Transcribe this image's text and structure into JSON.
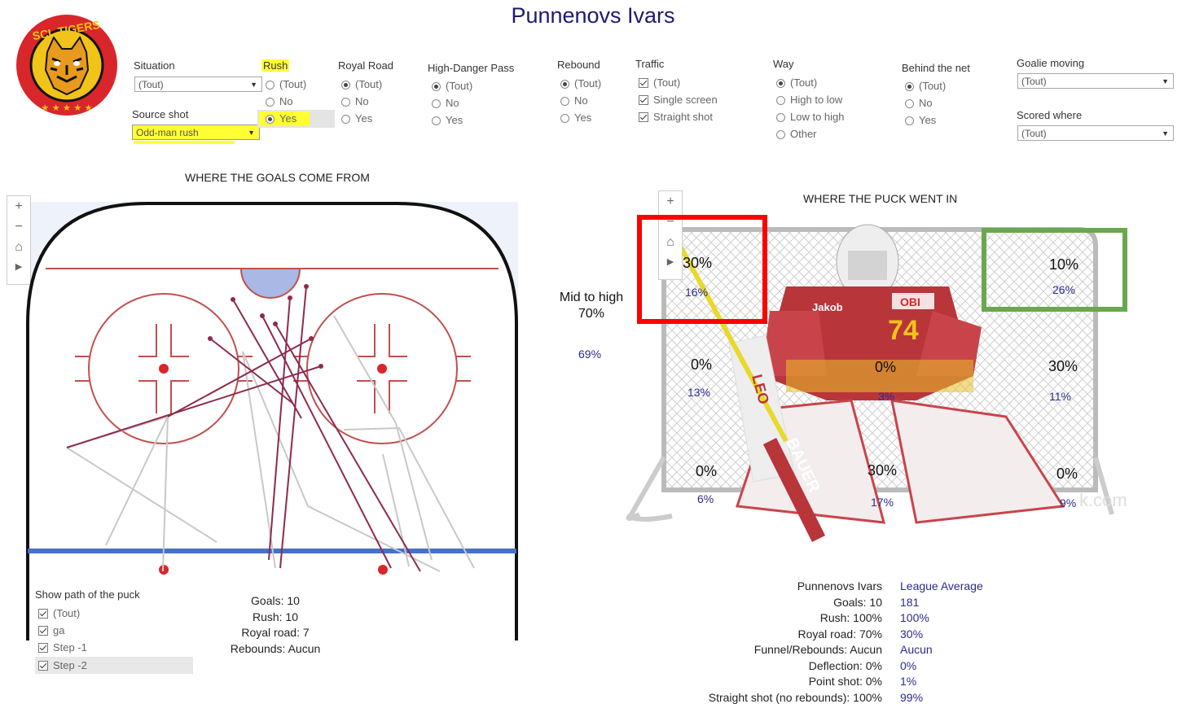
{
  "title": "Punnenovs Ivars",
  "filters": {
    "situation": {
      "label": "Situation",
      "value": "(Tout)"
    },
    "source_shot": {
      "label": "Source shot",
      "value": "Odd-man rush"
    },
    "rush": {
      "label": "Rush",
      "options": [
        "(Tout)",
        "No",
        "Yes"
      ],
      "selected": 2
    },
    "royal_road": {
      "label": "Royal Road",
      "options": [
        "(Tout)",
        "No",
        "Yes"
      ],
      "selected": 0
    },
    "high_danger": {
      "label": "High-Danger Pass",
      "options": [
        "(Tout)",
        "No",
        "Yes"
      ],
      "selected": 0
    },
    "rebound": {
      "label": "Rebound",
      "options": [
        "(Tout)",
        "No",
        "Yes"
      ],
      "selected": 0
    },
    "traffic": {
      "label": "Traffic",
      "options": [
        "(Tout)",
        "Single screen",
        "Straight shot"
      ]
    },
    "way": {
      "label": "Way",
      "options": [
        "(Tout)",
        "High to low",
        "Low to high",
        "Other"
      ],
      "selected": 0
    },
    "behind_net": {
      "label": "Behind the net",
      "options": [
        "(Tout)",
        "No",
        "Yes"
      ],
      "selected": 0
    },
    "goalie_moving": {
      "label": "Goalie moving",
      "value": "(Tout)"
    },
    "scored_where": {
      "label": "Scored where",
      "value": "(Tout)"
    }
  },
  "rink": {
    "title": "WHERE THE GOALS COME FROM",
    "show_path_label": "Show path of the puck",
    "paths": [
      "(Tout)",
      "ga",
      "Step -1",
      "Step -2"
    ],
    "stats": [
      "Goals: 10",
      "Rush: 10",
      "Royal road: 7",
      "Rebounds: Aucun"
    ]
  },
  "net": {
    "title": "WHERE THE PUCK WENT IN",
    "mid_to_high_label": "Mid to high",
    "mid_to_high_value": "70%",
    "mid_to_high_league": "69%",
    "zones": [
      {
        "pct": "30%",
        "league": "16%"
      },
      {
        "pct": "10%",
        "league": "26%"
      },
      {
        "pct": "0%",
        "league": "13%"
      },
      {
        "pct": "0%",
        "league": "3%"
      },
      {
        "pct": "30%",
        "league": "11%"
      },
      {
        "pct": "0%",
        "league": "6%"
      },
      {
        "pct": "30%",
        "league": "17%"
      },
      {
        "pct": "0%",
        "league": "9%"
      }
    ],
    "goalie_number": "74",
    "goalie_name": "Jakob",
    "sponsor": "OBI",
    "stick_brand": "BAUER",
    "pad_brand": "LEO",
    "watermark": "k.com",
    "colors": {
      "red_box": "#ff0000",
      "green_box": "#6aa84f"
    }
  },
  "comparison": {
    "player_header": "Punnenovs Ivars",
    "league_header": "League Average",
    "rows": [
      {
        "label": "Goals: 10",
        "league": "181"
      },
      {
        "label": "Rush: 100%",
        "league": "100%"
      },
      {
        "label": "Royal road: 70%",
        "league": "30%"
      },
      {
        "label": "Funnel/Rebounds: Aucun",
        "league": "Aucun"
      },
      {
        "label": "Deflection: 0%",
        "league": "0%"
      },
      {
        "label": "Point shot: 0%",
        "league": "1%"
      },
      {
        "label": "Straight shot (no rebounds): 100%",
        "league": "99%"
      }
    ]
  },
  "logo_text": "SCL TIGERS"
}
